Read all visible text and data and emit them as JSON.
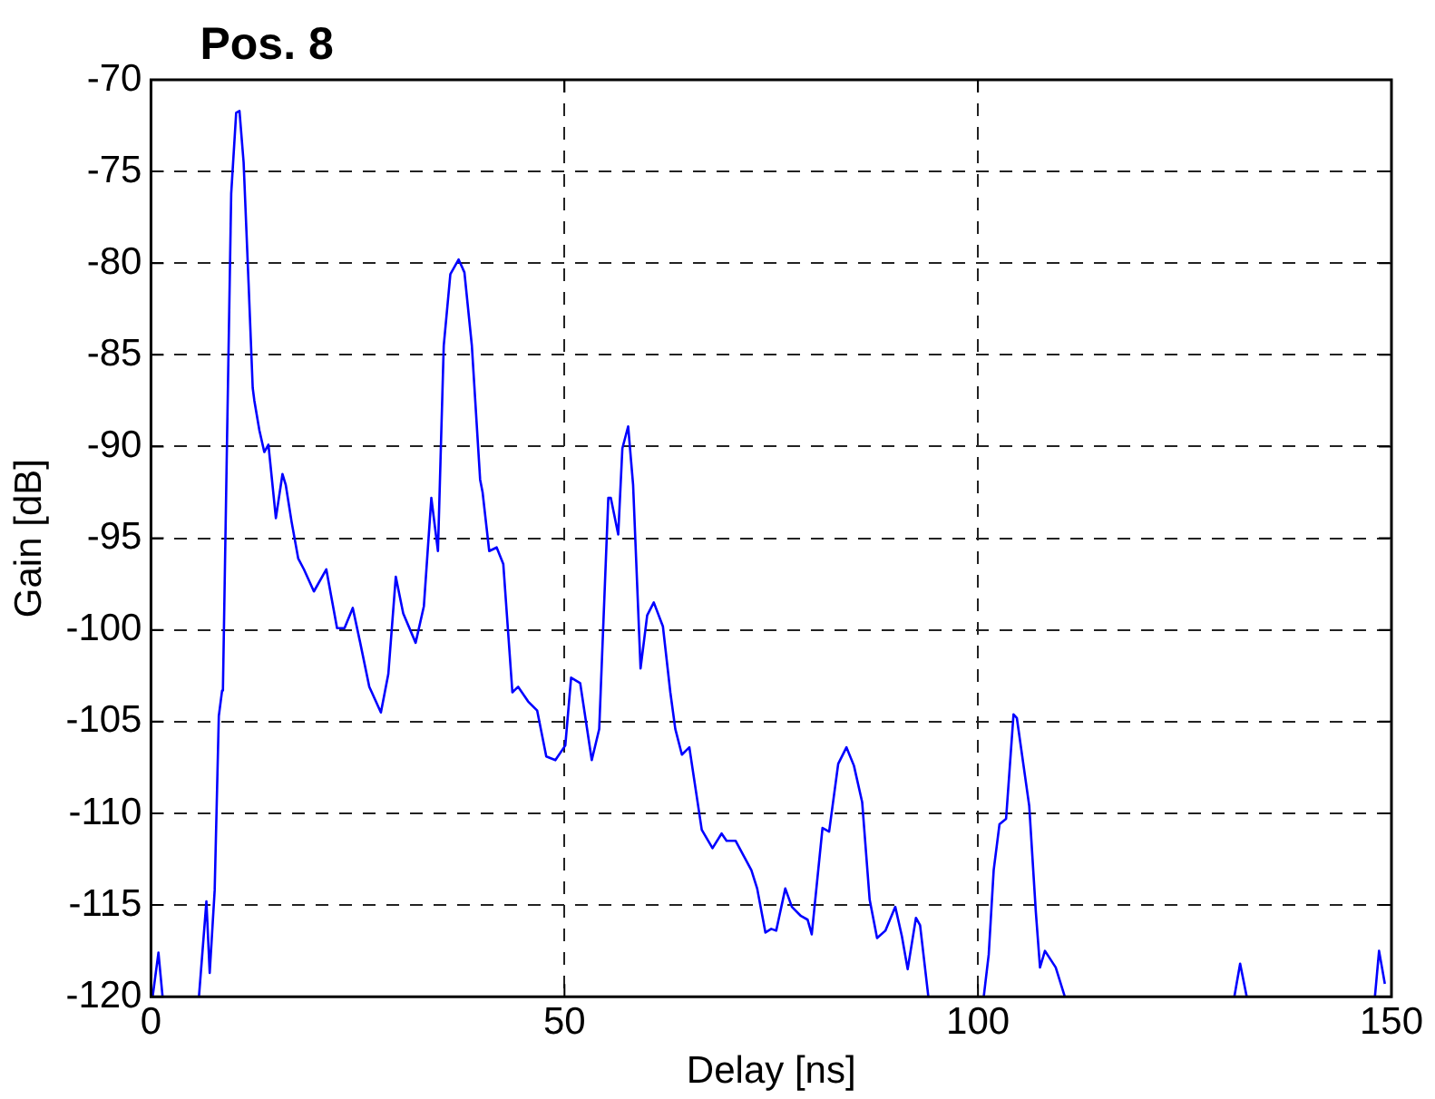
{
  "chart_data": {
    "type": "line",
    "title": "Pos. 8",
    "xlabel": "Delay [ns]",
    "ylabel": "Gain [dB]",
    "xlim": [
      0,
      150
    ],
    "xticks": [
      0,
      50,
      100,
      150
    ],
    "ylim": [
      -120,
      -70
    ],
    "yticks": [
      -120,
      -115,
      -110,
      -105,
      -100,
      -95,
      -90,
      -85,
      -80,
      -75,
      -70
    ],
    "grid": true,
    "legend": false,
    "marker": "none",
    "line_style": "solid",
    "series": [
      {
        "color": "#0000ff",
        "x": [
          0.2,
          0.9,
          1.4,
          1.5,
          5.8,
          6.7,
          7.1,
          7.7,
          8.2,
          8.6,
          8.7,
          9.2,
          9.7,
          10.3,
          10.7,
          11.2,
          11.8,
          12.3,
          12.5,
          13.1,
          13.7,
          14.2,
          15.1,
          15.9,
          16.3,
          17.0,
          17.8,
          18.5,
          19.7,
          21.2,
          22.5,
          23.4,
          24.4,
          25.3,
          26.4,
          27.8,
          28.7,
          29.6,
          30.5,
          32.0,
          33.0,
          33.9,
          34.7,
          35.4,
          36.2,
          37.2,
          37.9,
          38.8,
          39.8,
          40.1,
          40.9,
          41.8,
          42.6,
          43.7,
          44.4,
          45.6,
          46.7,
          47.8,
          48.9,
          50.1,
          50.8,
          51.9,
          53.3,
          54.2,
          55.3,
          55.6,
          56.5,
          57.0,
          57.7,
          58.3,
          59.2,
          60.0,
          60.8,
          61.9,
          62.8,
          63.4,
          64.2,
          65.1,
          66.6,
          67.9,
          69.0,
          69.6,
          70.7,
          72.6,
          73.3,
          74.3,
          75.0,
          75.6,
          76.7,
          77.5,
          78.6,
          79.4,
          79.9,
          81.2,
          82.0,
          83.1,
          84.1,
          85.0,
          86.0,
          86.9,
          87.8,
          88.8,
          90.0,
          90.8,
          91.5,
          92.5,
          93.0,
          94.0,
          94.5,
          100.7,
          101.3,
          101.9,
          102.6,
          103.4,
          104.3,
          104.7,
          106.2,
          107.0,
          107.5,
          108.1,
          109.4,
          110.5,
          111,
          131.0,
          131.7,
          132.5,
          133,
          148.0,
          148.5,
          149.2
        ],
        "values": [
          -120,
          -117.6,
          -120,
          null,
          -120,
          -114.8,
          -118.7,
          -114.2,
          -104.7,
          -103.3,
          -103.2,
          -89.5,
          -76.2,
          -71.8,
          -71.7,
          -74.5,
          -81.1,
          -86.8,
          -87.5,
          -89.1,
          -90.3,
          -89.9,
          -93.9,
          -91.5,
          -92.1,
          -94.1,
          -96.1,
          -96.7,
          -97.9,
          -96.7,
          -99.9,
          -99.9,
          -98.8,
          -100.7,
          -103.1,
          -104.5,
          -102.4,
          -97.1,
          -99.1,
          -100.7,
          -98.7,
          -92.8,
          -95.7,
          -84.5,
          -80.6,
          -79.8,
          -80.5,
          -84.5,
          -91.8,
          -92.5,
          -95.7,
          -95.5,
          -96.4,
          -103.4,
          -103.1,
          -103.9,
          -104.4,
          -106.9,
          -107.1,
          -106.3,
          -102.6,
          -102.9,
          -107.1,
          -105.4,
          -92.8,
          -92.8,
          -94.8,
          -90.1,
          -88.9,
          -92.1,
          -102.1,
          -99.2,
          -98.5,
          -99.8,
          -103.4,
          -105.4,
          -106.8,
          -106.4,
          -110.9,
          -111.9,
          -111.1,
          -111.5,
          -111.5,
          -113.1,
          -114.1,
          -116.5,
          -116.3,
          -116.4,
          -114.1,
          -115.1,
          -115.6,
          -115.8,
          -116.6,
          -110.8,
          -111.0,
          -107.3,
          -106.4,
          -107.4,
          -109.4,
          -114.7,
          -116.8,
          -116.4,
          -115.1,
          -116.7,
          -118.5,
          -115.7,
          -116.1,
          -120,
          null,
          -120,
          -117.7,
          -113.1,
          -110.6,
          -110.3,
          -104.6,
          -104.8,
          -109.6,
          -115.4,
          -118.4,
          -117.5,
          -118.4,
          -120,
          null,
          -120,
          -118.2,
          -120,
          null,
          -120,
          -117.5,
          -119.3
        ]
      }
    ]
  }
}
